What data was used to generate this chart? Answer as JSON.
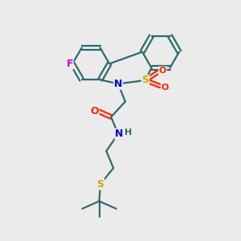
{
  "bg_color": "#ebebeb",
  "bond_color": "#2d6b6b",
  "bond_width": 1.6,
  "atom_colors": {
    "N": "#0000cc",
    "O": "#ff2200",
    "F": "#cc00cc",
    "S": "#ccaa00",
    "C": "#2d6b6b",
    "H": "#2d6b6b"
  },
  "font_size": 9
}
